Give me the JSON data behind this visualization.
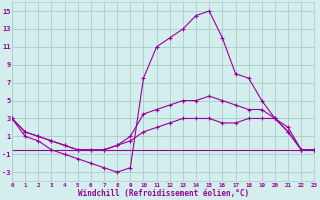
{
  "background_color": "#d4eeee",
  "grid_color": "#aacccc",
  "line_color": "#990099",
  "series": {
    "line1": {
      "x": [
        0,
        1,
        2,
        3,
        4,
        5,
        6,
        7,
        8,
        9,
        10,
        11,
        12,
        13,
        14,
        15,
        16,
        17,
        18,
        19,
        20,
        21,
        22,
        23
      ],
      "y": [
        3,
        1,
        0.5,
        -0.5,
        -1,
        -1.5,
        -2,
        -2.5,
        -3,
        -2.5,
        7.5,
        11,
        12,
        13,
        14.5,
        15,
        12,
        8,
        7.5,
        5,
        3,
        1.5,
        -0.5,
        -0.5
      ]
    },
    "line2": {
      "x": [
        0,
        1,
        2,
        3,
        4,
        5,
        6,
        7,
        8,
        9,
        10,
        11,
        12,
        13,
        14,
        15,
        16,
        17,
        18,
        19,
        20,
        21,
        22,
        23
      ],
      "y": [
        3,
        1.5,
        1,
        0.5,
        0,
        -0.5,
        -0.5,
        -0.5,
        0,
        1,
        3.5,
        4,
        4.5,
        5,
        5,
        5.5,
        5,
        4.5,
        4,
        4,
        3,
        1.5,
        -0.5,
        -0.5
      ]
    },
    "line3": {
      "x": [
        0,
        1,
        2,
        3,
        4,
        5,
        6,
        7,
        8,
        9,
        10,
        11,
        12,
        13,
        14,
        15,
        16,
        17,
        18,
        19,
        20,
        21,
        22,
        23
      ],
      "y": [
        3,
        1.5,
        1,
        0.5,
        0,
        -0.5,
        -0.5,
        -0.5,
        0,
        0.5,
        1.5,
        2,
        2.5,
        3,
        3,
        3,
        2.5,
        2.5,
        3,
        3,
        3,
        2,
        -0.5,
        -0.5
      ]
    },
    "line4": {
      "x": [
        0,
        23
      ],
      "y": [
        -0.5,
        -0.5
      ]
    }
  },
  "xlabel": "Windchill (Refroidissement éolien,°C)",
  "xlim": [
    0,
    23
  ],
  "ylim": [
    -4,
    16
  ],
  "yticks": [
    -3,
    -1,
    1,
    3,
    5,
    7,
    9,
    11,
    13,
    15
  ],
  "xticks": [
    0,
    1,
    2,
    3,
    4,
    5,
    6,
    7,
    8,
    9,
    10,
    11,
    12,
    13,
    14,
    15,
    16,
    17,
    18,
    19,
    20,
    21,
    22,
    23
  ],
  "figsize": [
    3.2,
    2.0
  ],
  "dpi": 100
}
